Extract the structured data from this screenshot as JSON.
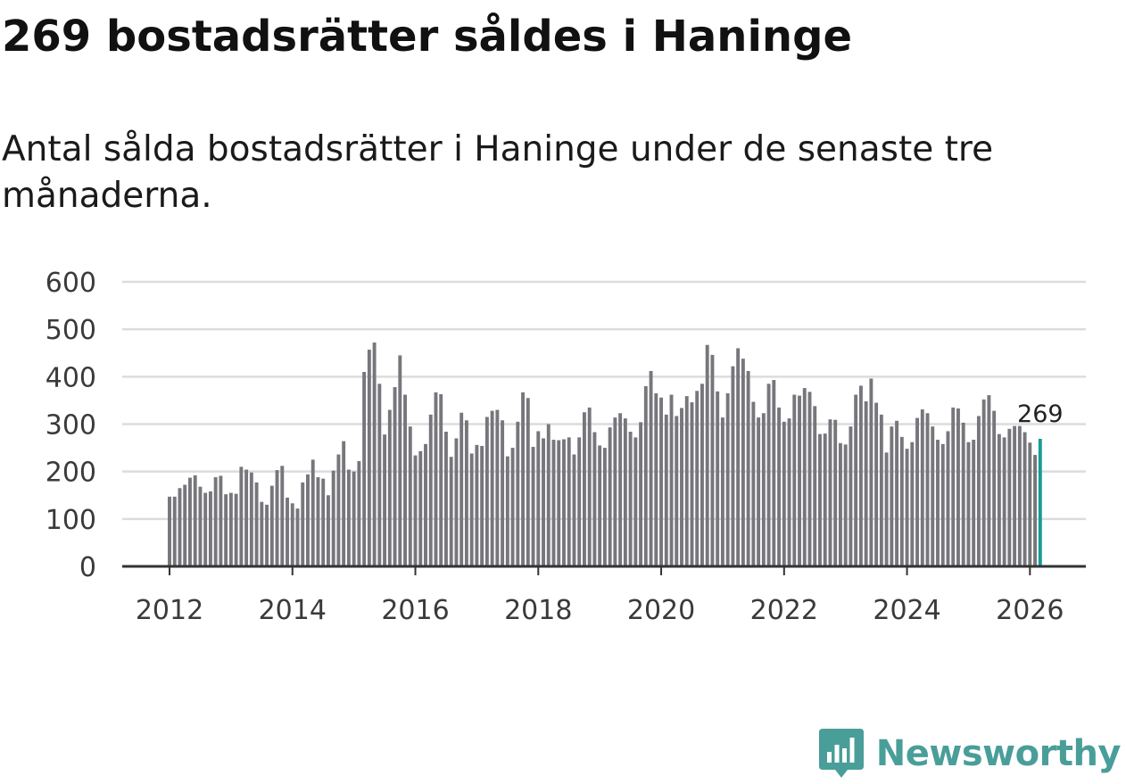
{
  "header": {
    "title": "269 bostadsrätter såldes i Haninge",
    "subtitle": "Antal sålda bostadsrätter i Haninge under de senaste tre månaderna."
  },
  "brand": {
    "name": "Newsworthy",
    "color": "#4a9e99",
    "icon": "bar-chart-badge-icon"
  },
  "colors": {
    "bar": "#76767c",
    "highlight": "#159c94",
    "grid": "#dcdcdc",
    "axis": "#333333"
  },
  "chart_data": {
    "type": "bar",
    "title": "Antal sålda bostadsrätter i Haninge under de senaste tre månaderna.",
    "xlabel": "",
    "ylabel": "",
    "ylim": [
      0,
      600
    ],
    "y_ticks": [
      "0",
      "100",
      "200",
      "300",
      "400",
      "500",
      "600"
    ],
    "x_ticks": [
      "2012",
      "2014",
      "2016",
      "2018",
      "2020",
      "2022",
      "2024",
      "2026"
    ],
    "start": "2012-01",
    "frequency": "monthly",
    "grid": true,
    "highlight_last": true,
    "annotation": "269",
    "values": [
      147,
      147,
      165,
      172,
      187,
      192,
      168,
      155,
      158,
      188,
      191,
      152,
      155,
      153,
      210,
      204,
      198,
      177,
      136,
      130,
      170,
      203,
      212,
      145,
      133,
      122,
      177,
      194,
      225,
      188,
      185,
      150,
      202,
      236,
      264,
      204,
      200,
      222,
      410,
      457,
      472,
      385,
      278,
      330,
      378,
      445,
      362,
      295,
      234,
      243,
      258,
      320,
      367,
      363,
      284,
      231,
      270,
      324,
      308,
      238,
      256,
      254,
      315,
      328,
      330,
      308,
      232,
      250,
      305,
      367,
      355,
      252,
      285,
      270,
      300,
      267,
      266,
      268,
      272,
      236,
      272,
      325,
      335,
      283,
      255,
      250,
      293,
      314,
      323,
      312,
      284,
      272,
      304,
      380,
      412,
      365,
      356,
      320,
      362,
      317,
      334,
      359,
      346,
      370,
      385,
      467,
      446,
      369,
      314,
      365,
      422,
      460,
      438,
      412,
      347,
      314,
      323,
      385,
      393,
      335,
      305,
      312,
      362,
      360,
      376,
      368,
      338,
      279,
      280,
      310,
      309,
      260,
      257,
      295,
      362,
      381,
      348,
      396,
      345,
      320,
      240,
      295,
      307,
      273,
      248,
      262,
      313,
      331,
      323,
      295,
      267,
      258,
      285,
      335,
      333,
      303,
      262,
      267,
      317,
      352,
      361,
      328,
      279,
      272,
      290,
      296,
      296,
      283,
      261,
      235,
      269
    ]
  }
}
